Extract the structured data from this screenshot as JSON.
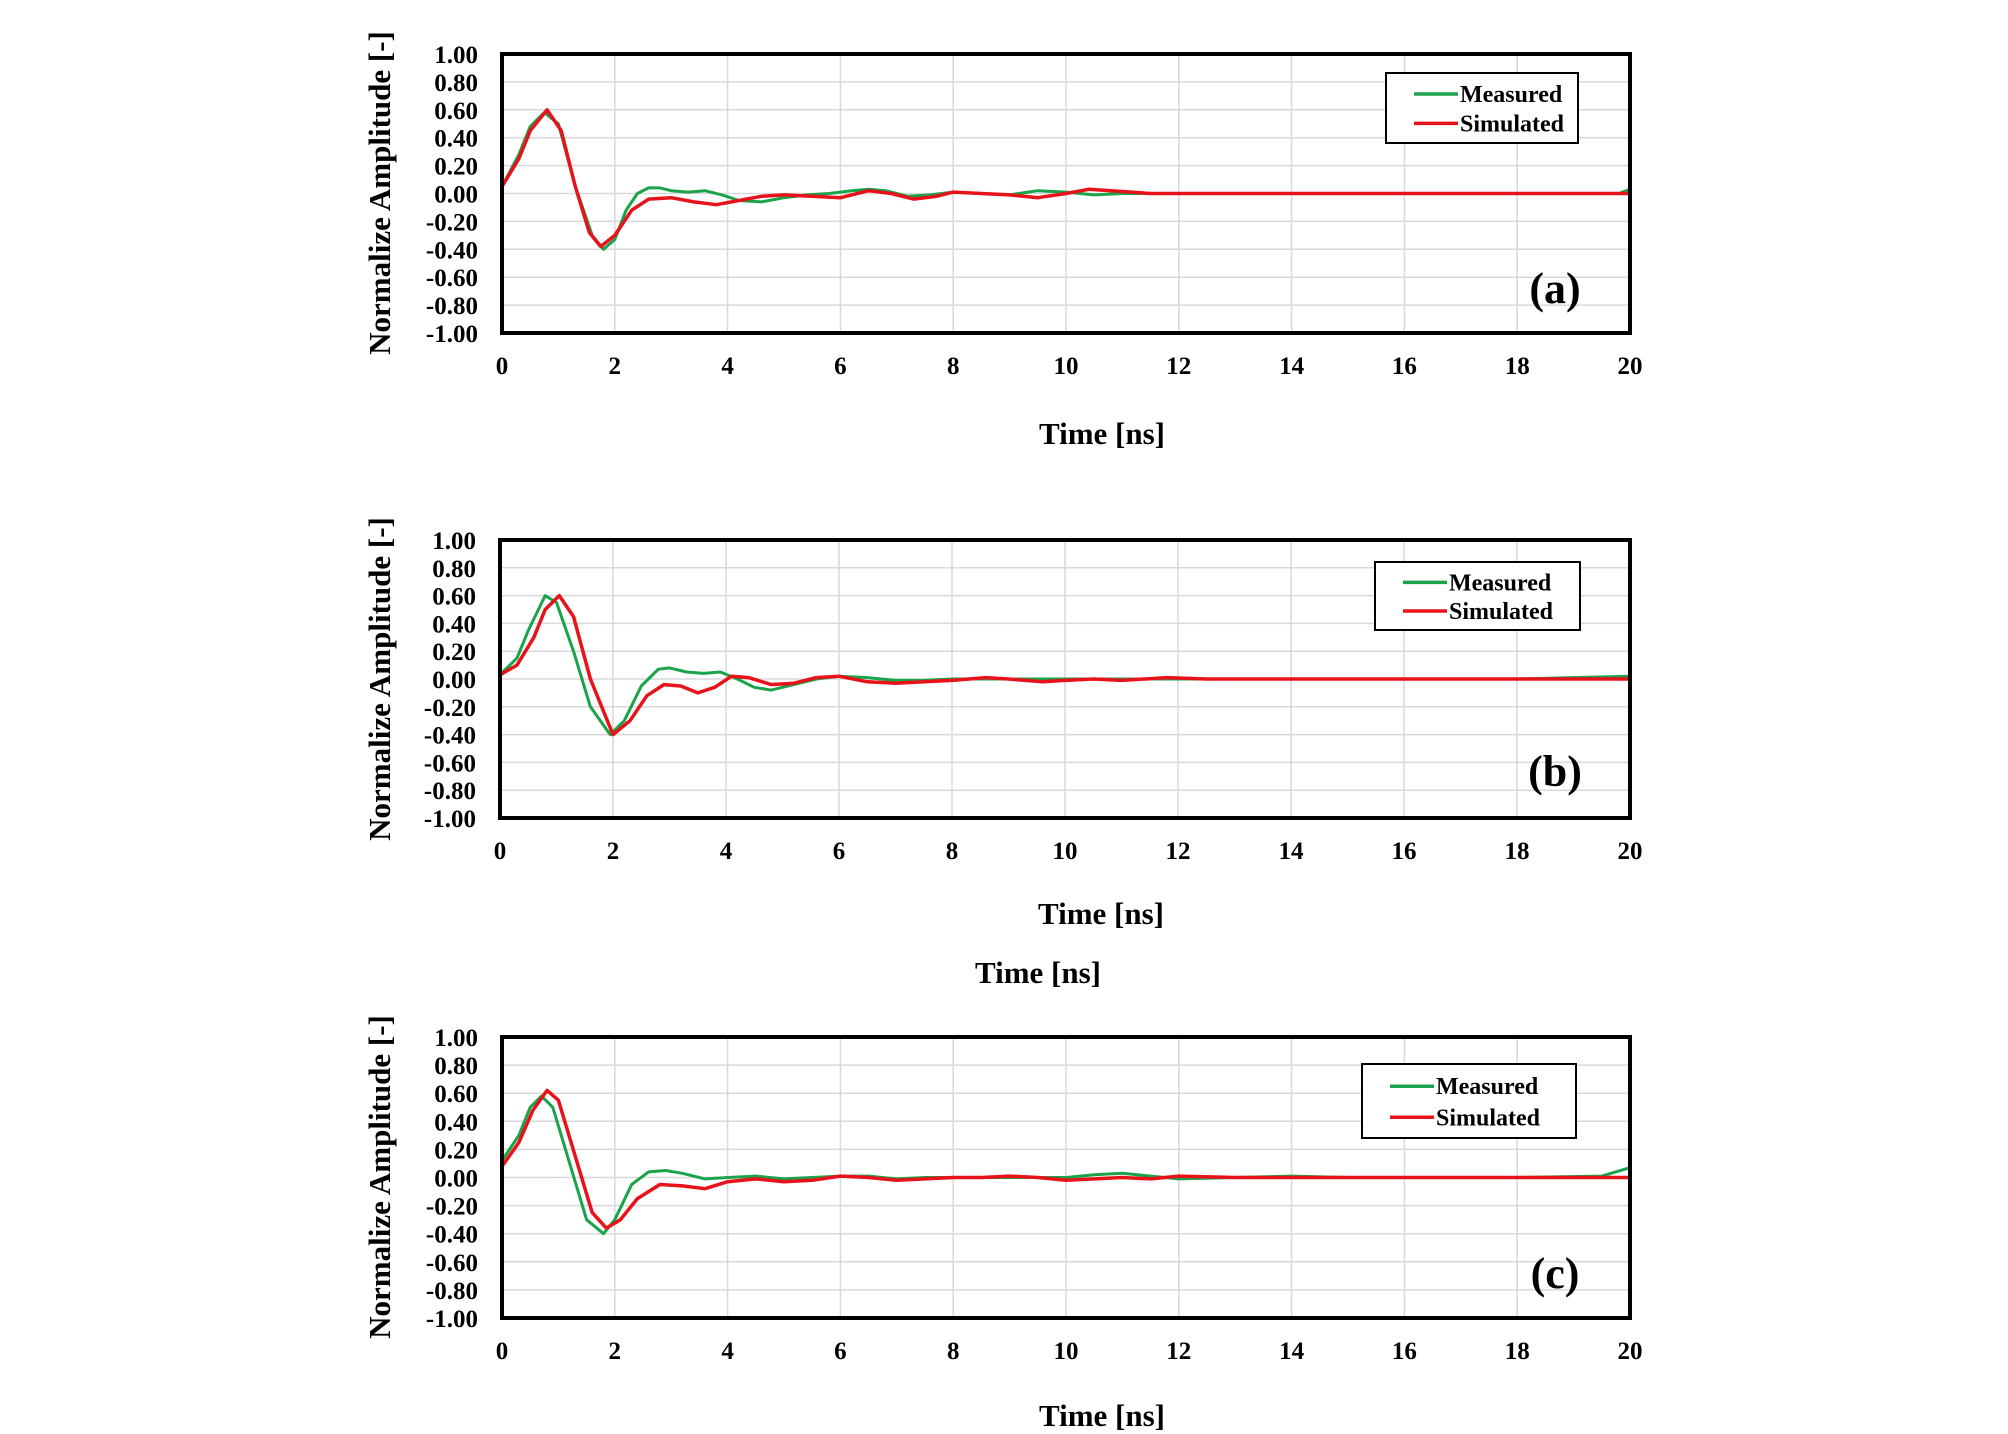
{
  "figure": {
    "extra_xlabel": "Time [ns]",
    "colors": {
      "measured": "#1aa34a",
      "simulated": "#e8121b",
      "grid": "#d9d9d9"
    }
  },
  "chart_data": [
    {
      "type": "line",
      "panel_label": "(a)",
      "title": "",
      "xlabel": "Time [ns]",
      "ylabel": "Normalize Amplitude [-]",
      "xlim": [
        0,
        20
      ],
      "ylim": [
        -1.0,
        1.0
      ],
      "xticks": [
        "0",
        "2",
        "4",
        "6",
        "8",
        "10",
        "12",
        "14",
        "16",
        "18",
        "20"
      ],
      "yticks": [
        "1.00",
        "0.80",
        "0.60",
        "0.40",
        "0.20",
        "0.00",
        "-0.20",
        "-0.40",
        "-0.60",
        "-0.80",
        "-1.00"
      ],
      "grid": true,
      "legend_position": "top-right",
      "series": [
        {
          "name": "Measured",
          "x": [
            0,
            0.3,
            0.5,
            0.75,
            1.0,
            1.3,
            1.6,
            1.8,
            2.0,
            2.2,
            2.4,
            2.6,
            2.8,
            3.0,
            3.3,
            3.6,
            3.9,
            4.2,
            4.6,
            5.0,
            5.4,
            5.8,
            6.2,
            6.5,
            6.8,
            7.2,
            7.6,
            8.0,
            8.5,
            9.0,
            9.5,
            10.0,
            10.5,
            11.0,
            12.0,
            13.0,
            14.0,
            15.0,
            16.0,
            17.0,
            18.0,
            19.0,
            19.8,
            20.0
          ],
          "y": [
            0.05,
            0.28,
            0.48,
            0.58,
            0.5,
            0.05,
            -0.3,
            -0.4,
            -0.33,
            -0.12,
            0.0,
            0.04,
            0.04,
            0.02,
            0.01,
            0.02,
            -0.01,
            -0.05,
            -0.06,
            -0.03,
            -0.01,
            0.0,
            0.02,
            0.03,
            0.02,
            -0.02,
            -0.01,
            0.01,
            0.0,
            -0.01,
            0.02,
            0.01,
            -0.01,
            0.0,
            0.0,
            0.0,
            0.0,
            0.0,
            0.0,
            0.0,
            0.0,
            0.0,
            0.0,
            0.03
          ]
        },
        {
          "name": "Simulated",
          "x": [
            0,
            0.3,
            0.5,
            0.8,
            1.05,
            1.3,
            1.55,
            1.75,
            2.0,
            2.3,
            2.6,
            3.0,
            3.4,
            3.8,
            4.2,
            4.6,
            5.0,
            5.5,
            6.0,
            6.5,
            6.9,
            7.3,
            7.7,
            8.0,
            8.5,
            9.0,
            9.5,
            10.0,
            10.4,
            10.8,
            11.5,
            12.5,
            13.5,
            14.5,
            16.0,
            18.0,
            20.0
          ],
          "y": [
            0.05,
            0.25,
            0.45,
            0.6,
            0.45,
            0.05,
            -0.28,
            -0.38,
            -0.3,
            -0.12,
            -0.04,
            -0.03,
            -0.06,
            -0.08,
            -0.05,
            -0.02,
            -0.01,
            -0.02,
            -0.03,
            0.02,
            0.0,
            -0.04,
            -0.02,
            0.01,
            0.0,
            -0.01,
            -0.03,
            0.0,
            0.03,
            0.02,
            0.0,
            0.0,
            0.0,
            0.0,
            0.0,
            0.0,
            0.0
          ]
        }
      ]
    },
    {
      "type": "line",
      "panel_label": "(b)",
      "title": "",
      "xlabel": "Time [ns]",
      "ylabel": "Normalize Amplitude [-]",
      "xlim": [
        0,
        20
      ],
      "ylim": [
        -1.0,
        1.0
      ],
      "xticks": [
        "0",
        "2",
        "4",
        "6",
        "8",
        "10",
        "12",
        "14",
        "16",
        "18",
        "20"
      ],
      "yticks": [
        "1.00",
        "0.80",
        "0.60",
        "0.40",
        "0.20",
        "0.00",
        "-0.20",
        "-0.40",
        "-0.60",
        "-0.80",
        "-1.00"
      ],
      "grid": true,
      "legend_position": "top-right",
      "series": [
        {
          "name": "Measured",
          "x": [
            0,
            0.3,
            0.5,
            0.8,
            1.0,
            1.3,
            1.6,
            1.95,
            2.2,
            2.5,
            2.8,
            3.0,
            3.3,
            3.6,
            3.9,
            4.2,
            4.5,
            4.8,
            5.2,
            5.6,
            6.0,
            6.5,
            7.0,
            7.5,
            8.0,
            9.0,
            10.0,
            11.0,
            12.0,
            13.0,
            14.0,
            16.0,
            18.0,
            19.0,
            20.0
          ],
          "y": [
            0.03,
            0.15,
            0.35,
            0.6,
            0.55,
            0.2,
            -0.2,
            -0.4,
            -0.3,
            -0.05,
            0.07,
            0.08,
            0.05,
            0.04,
            0.05,
            0.0,
            -0.06,
            -0.08,
            -0.04,
            0.0,
            0.02,
            0.01,
            -0.01,
            -0.01,
            0.0,
            0.0,
            0.0,
            0.0,
            0.0,
            0.0,
            0.0,
            0.0,
            0.0,
            0.01,
            0.02
          ]
        },
        {
          "name": "Simulated",
          "x": [
            0,
            0.3,
            0.6,
            0.8,
            1.05,
            1.3,
            1.6,
            2.0,
            2.3,
            2.6,
            2.9,
            3.2,
            3.5,
            3.8,
            4.1,
            4.4,
            4.8,
            5.2,
            5.6,
            6.0,
            6.5,
            7.0,
            7.5,
            8.0,
            8.6,
            9.0,
            9.6,
            10.0,
            10.5,
            11.0,
            11.8,
            12.5,
            13.5,
            14.5,
            16.0,
            18.0,
            20.0
          ],
          "y": [
            0.03,
            0.1,
            0.3,
            0.5,
            0.6,
            0.45,
            0.0,
            -0.4,
            -0.3,
            -0.12,
            -0.04,
            -0.05,
            -0.1,
            -0.06,
            0.02,
            0.01,
            -0.04,
            -0.03,
            0.01,
            0.02,
            -0.02,
            -0.03,
            -0.02,
            -0.01,
            0.01,
            0.0,
            -0.02,
            -0.01,
            0.0,
            -0.01,
            0.01,
            0.0,
            0.0,
            0.0,
            0.0,
            0.0,
            0.0
          ]
        }
      ]
    },
    {
      "type": "line",
      "panel_label": "(c)",
      "title": "",
      "xlabel": "Time [ns]",
      "ylabel": "Normalize Amplitude [-]",
      "xlim": [
        0,
        20
      ],
      "ylim": [
        -1.0,
        1.0
      ],
      "xticks": [
        "0",
        "2",
        "4",
        "6",
        "8",
        "10",
        "12",
        "14",
        "16",
        "18",
        "20"
      ],
      "yticks": [
        "1.00",
        "0.80",
        "0.60",
        "0.40",
        "0.20",
        "0.00",
        "-0.20",
        "-0.40",
        "-0.60",
        "-0.80",
        "-1.00"
      ],
      "grid": true,
      "legend_position": "top-right",
      "series": [
        {
          "name": "Measured",
          "x": [
            0,
            0.3,
            0.5,
            0.7,
            0.9,
            1.2,
            1.5,
            1.8,
            2.0,
            2.3,
            2.6,
            2.9,
            3.2,
            3.6,
            4.0,
            4.5,
            5.0,
            5.5,
            6.0,
            6.5,
            7.0,
            7.5,
            8.0,
            9.0,
            10.0,
            10.5,
            11.0,
            11.5,
            12.0,
            13.0,
            14.0,
            15.0,
            16.0,
            18.0,
            19.5,
            20.0
          ],
          "y": [
            0.12,
            0.3,
            0.5,
            0.58,
            0.5,
            0.1,
            -0.3,
            -0.4,
            -0.3,
            -0.05,
            0.04,
            0.05,
            0.03,
            -0.01,
            0.0,
            0.01,
            -0.01,
            0.0,
            0.01,
            0.01,
            -0.01,
            0.0,
            0.0,
            0.0,
            0.0,
            0.02,
            0.03,
            0.01,
            -0.01,
            0.0,
            0.01,
            0.0,
            0.0,
            0.0,
            0.01,
            0.07
          ]
        },
        {
          "name": "Simulated",
          "x": [
            0,
            0.3,
            0.55,
            0.8,
            1.0,
            1.3,
            1.6,
            1.85,
            2.1,
            2.4,
            2.8,
            3.2,
            3.6,
            4.0,
            4.5,
            5.0,
            5.5,
            6.0,
            6.5,
            7.0,
            7.5,
            8.0,
            8.5,
            9.0,
            9.5,
            10.0,
            10.5,
            11.0,
            11.5,
            12.0,
            13.0,
            14.0,
            16.0,
            18.0,
            20.0
          ],
          "y": [
            0.08,
            0.25,
            0.48,
            0.62,
            0.55,
            0.15,
            -0.25,
            -0.36,
            -0.3,
            -0.15,
            -0.05,
            -0.06,
            -0.08,
            -0.03,
            -0.01,
            -0.03,
            -0.02,
            0.01,
            0.0,
            -0.02,
            -0.01,
            0.0,
            0.0,
            0.01,
            0.0,
            -0.02,
            -0.01,
            0.0,
            -0.01,
            0.01,
            0.0,
            0.0,
            0.0,
            0.0,
            0.0
          ]
        }
      ]
    }
  ]
}
